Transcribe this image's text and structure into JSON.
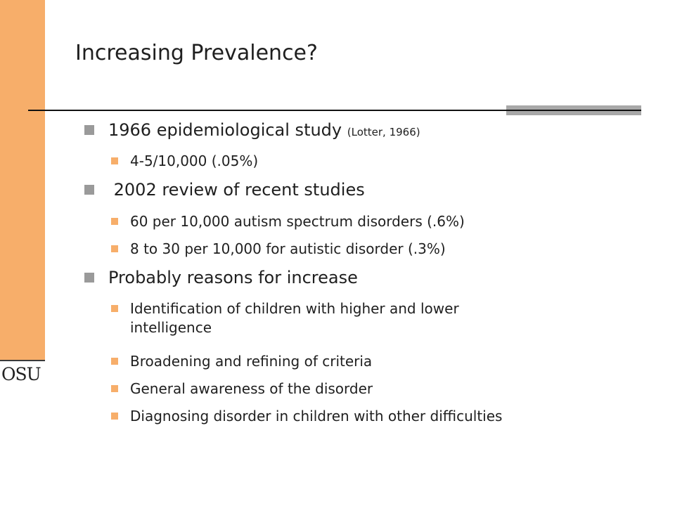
{
  "slide": {
    "title": "Increasing Prevalence?",
    "logo_text": "OSU",
    "accent_color": "#f7ae6a",
    "bullet_gray": "#9a9a9a"
  },
  "bullets": [
    {
      "level": 1,
      "text": "1966 epidemiological study",
      "citation": "(Lotter, 1966)"
    },
    {
      "level": 2,
      "text": "4-5/10,000 (.05%)"
    },
    {
      "level": 1,
      "text": " 2002 review of recent studies"
    },
    {
      "level": 2,
      "text": "60 per 10,000 autism spectrum disorders (.6%)"
    },
    {
      "level": 2,
      "text": "8 to 30 per 10,000 for autistic disorder (.3%)"
    },
    {
      "level": 1,
      "text": "Probably reasons for increase"
    },
    {
      "level": 2,
      "text_line1": "Identification of children with higher and lower",
      "text_line2": "intelligence"
    },
    {
      "level": 2,
      "text": "Broadening and refining of criteria"
    },
    {
      "level": 2,
      "text": "General awareness of the disorder"
    },
    {
      "level": 2,
      "text": "Diagnosing disorder in children with other difficulties"
    }
  ]
}
